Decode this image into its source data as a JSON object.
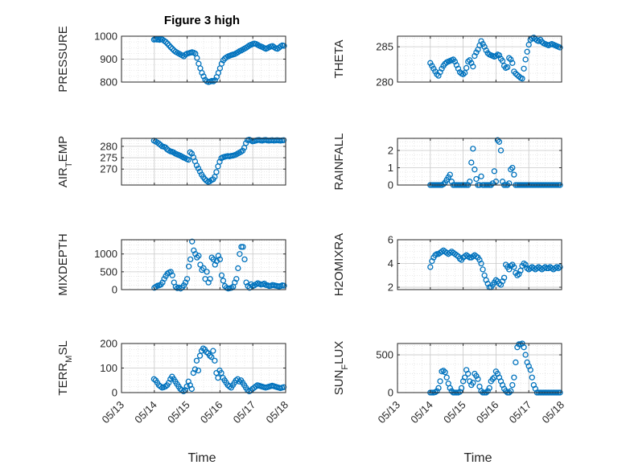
{
  "figure_title": "Figure 3 high",
  "x_label": "Time",
  "marker_color": "#0072bd",
  "x_tick_labels": [
    "05/13",
    "05/14",
    "05/15",
    "05/16",
    "05/17",
    "05/18"
  ],
  "chart_data": [
    {
      "type": "scatter",
      "ylabel": "PRESSURE",
      "ylim": [
        800,
        1000
      ],
      "yticks": [
        800,
        900,
        1000
      ],
      "grid": true,
      "x_range": [
        "05/13",
        "05/18"
      ],
      "x": [
        0.99,
        1.03,
        1.08,
        1.12,
        1.16,
        1.2,
        1.25,
        1.3,
        1.35,
        1.4,
        1.45,
        1.5,
        1.55,
        1.6,
        1.65,
        1.7,
        1.75,
        1.8,
        1.85,
        1.9,
        1.95,
        2.0,
        2.05,
        2.1,
        2.15,
        2.2,
        2.25,
        2.3,
        2.35,
        2.4,
        2.45,
        2.5,
        2.55,
        2.6,
        2.65,
        2.7,
        2.75,
        2.8,
        2.85,
        2.9,
        2.95,
        3.0,
        3.05,
        3.1,
        3.15,
        3.2,
        3.25,
        3.3,
        3.35,
        3.4,
        3.45,
        3.5,
        3.55,
        3.6,
        3.65,
        3.7,
        3.75,
        3.8,
        3.85,
        3.9,
        3.95,
        4.0,
        4.05,
        4.1,
        4.15,
        4.2,
        4.25,
        4.3,
        4.35,
        4.4,
        4.45,
        4.5,
        4.55,
        4.6,
        4.65,
        4.7,
        4.75,
        4.8,
        4.85,
        4.9,
        4.95
      ],
      "y": [
        985,
        987,
        985,
        986,
        984,
        988,
        985,
        980,
        975,
        968,
        960,
        952,
        945,
        938,
        932,
        928,
        924,
        920,
        916,
        912,
        920,
        924,
        926,
        928,
        930,
        928,
        924,
        905,
        880,
        860,
        840,
        825,
        810,
        803,
        800,
        802,
        805,
        803,
        808,
        822,
        840,
        860,
        880,
        895,
        903,
        908,
        912,
        915,
        918,
        920,
        922,
        926,
        930,
        935,
        938,
        942,
        946,
        950,
        955,
        960,
        963,
        966,
        968,
        966,
        962,
        958,
        955,
        952,
        948,
        945,
        948,
        952,
        955,
        957,
        952,
        947,
        945,
        950,
        956,
        960,
        958
      ]
    },
    {
      "type": "scatter",
      "ylabel": "THETA",
      "ylim": [
        280,
        286.5
      ],
      "yticks": [
        280,
        285
      ],
      "grid": true,
      "x_range": [
        "05/13",
        "05/18"
      ],
      "x": [
        1.0,
        1.05,
        1.1,
        1.15,
        1.2,
        1.25,
        1.3,
        1.35,
        1.4,
        1.45,
        1.5,
        1.55,
        1.6,
        1.65,
        1.7,
        1.75,
        1.8,
        1.85,
        1.9,
        1.95,
        2.0,
        2.05,
        2.1,
        2.15,
        2.2,
        2.25,
        2.3,
        2.35,
        2.4,
        2.45,
        2.5,
        2.55,
        2.6,
        2.65,
        2.7,
        2.75,
        2.8,
        2.85,
        2.9,
        2.95,
        3.0,
        3.05,
        3.1,
        3.15,
        3.2,
        3.25,
        3.3,
        3.35,
        3.4,
        3.45,
        3.5,
        3.55,
        3.6,
        3.65,
        3.7,
        3.75,
        3.8,
        3.85,
        3.9,
        3.95,
        4.0,
        4.05,
        4.1,
        4.15,
        4.2,
        4.25,
        4.3,
        4.35,
        4.4,
        4.45,
        4.5,
        4.55,
        4.6,
        4.65,
        4.7,
        4.75,
        4.8,
        4.85,
        4.9,
        4.95
      ],
      "y": [
        282.7,
        282.3,
        281.9,
        281.5,
        281.1,
        280.9,
        281.4,
        281.9,
        282.3,
        282.6,
        282.8,
        282.9,
        283.0,
        283.1,
        283.2,
        282.9,
        282.4,
        281.9,
        281.4,
        281.2,
        281.1,
        281.3,
        282.0,
        282.9,
        283.1,
        282.7,
        282.2,
        283.7,
        284.2,
        284.6,
        285.2,
        285.8,
        285.4,
        285.0,
        284.5,
        284.1,
        283.9,
        283.8,
        283.7,
        283.6,
        283.7,
        283.9,
        283.8,
        283.3,
        283.0,
        282.3,
        282.0,
        282.1,
        283.4,
        283.2,
        282.7,
        281.5,
        281.2,
        281.0,
        280.8,
        280.6,
        280.5,
        281.9,
        283.2,
        284.3,
        285.3,
        286.0,
        286.2,
        286.3,
        286.1,
        285.9,
        285.8,
        286.0,
        285.7,
        285.5,
        285.4,
        285.3,
        285.2,
        285.3,
        285.4,
        285.3,
        285.2,
        285.1,
        285.0,
        284.9
      ]
    },
    {
      "type": "scatter",
      "ylabel_main": "AIR",
      "ylabel_sub": "T",
      "ylabel_tail": "EMP",
      "ylim": [
        263,
        283.5
      ],
      "yticks": [
        270,
        275,
        280
      ],
      "grid": true,
      "x_range": [
        "05/13",
        "05/18"
      ],
      "x": [
        0.99,
        1.04,
        1.09,
        1.14,
        1.19,
        1.24,
        1.29,
        1.34,
        1.39,
        1.44,
        1.49,
        1.54,
        1.59,
        1.64,
        1.69,
        1.74,
        1.79,
        1.84,
        1.89,
        1.94,
        1.99,
        2.04,
        2.09,
        2.14,
        2.19,
        2.24,
        2.29,
        2.34,
        2.39,
        2.44,
        2.49,
        2.54,
        2.59,
        2.64,
        2.69,
        2.74,
        2.79,
        2.84,
        2.89,
        2.94,
        2.99,
        3.04,
        3.09,
        3.14,
        3.19,
        3.24,
        3.29,
        3.34,
        3.39,
        3.44,
        3.49,
        3.54,
        3.59,
        3.64,
        3.69,
        3.74,
        3.79,
        3.84,
        3.89,
        3.94,
        3.99,
        4.04,
        4.09,
        4.14,
        4.19,
        4.24,
        4.29,
        4.34,
        4.39,
        4.44,
        4.49,
        4.54,
        4.59,
        4.64,
        4.69,
        4.74,
        4.79,
        4.84,
        4.89,
        4.94
      ],
      "y": [
        282.5,
        282.1,
        281.7,
        281.2,
        280.6,
        280.0,
        279.8,
        279.5,
        278.7,
        278.2,
        277.8,
        277.6,
        277.3,
        276.8,
        276.5,
        276.2,
        275.9,
        275.5,
        275.1,
        274.8,
        274.4,
        274.1,
        277.4,
        276.8,
        275.2,
        273.4,
        271.6,
        270.3,
        268.9,
        267.6,
        266.5,
        265.6,
        264.9,
        264.4,
        264.6,
        265.2,
        265.5,
        266.6,
        268.7,
        271.2,
        273.2,
        274.8,
        275.2,
        275.4,
        275.6,
        275.7,
        275.6,
        275.8,
        275.9,
        276.1,
        276.4,
        276.8,
        277.2,
        277.6,
        278.1,
        279.4,
        281.4,
        282.7,
        282.9,
        282.6,
        282.2,
        282.3,
        282.5,
        282.7,
        282.8,
        282.6,
        282.5,
        282.7,
        282.8,
        282.6,
        282.5,
        282.6,
        282.7,
        282.5,
        282.6,
        282.7,
        282.6,
        282.5,
        282.6,
        282.7
      ]
    },
    {
      "type": "scatter",
      "ylabel": "RAINFALL",
      "ylim": [
        0,
        2.7
      ],
      "yticks": [
        0,
        1,
        2
      ],
      "grid": true,
      "x_range": [
        "05/13",
        "05/18"
      ],
      "x": [
        1.0,
        1.05,
        1.1,
        1.15,
        1.2,
        1.25,
        1.3,
        1.35,
        1.4,
        1.45,
        1.5,
        1.55,
        1.6,
        1.65,
        1.7,
        1.75,
        1.8,
        1.85,
        1.9,
        1.95,
        2.0,
        2.05,
        2.1,
        2.15,
        2.2,
        2.25,
        2.3,
        2.35,
        2.4,
        2.45,
        2.5,
        2.55,
        2.6,
        2.65,
        2.7,
        2.75,
        2.8,
        2.85,
        2.9,
        2.95,
        3.0,
        3.05,
        3.1,
        3.15,
        3.2,
        3.25,
        3.3,
        3.35,
        3.4,
        3.45,
        3.5,
        3.55,
        3.6,
        3.65,
        3.7,
        3.75,
        3.8,
        3.85,
        3.9,
        3.95,
        4.0,
        4.05,
        4.1,
        4.15,
        4.2,
        4.25,
        4.3,
        4.35,
        4.4,
        4.45,
        4.5,
        4.55,
        4.6,
        4.65,
        4.7,
        4.75,
        4.8,
        4.85,
        4.9,
        4.95
      ],
      "y": [
        0,
        0,
        0,
        0,
        0,
        0,
        0,
        0,
        0.05,
        0.15,
        0.3,
        0.45,
        0.6,
        0.2,
        0,
        0,
        0,
        0,
        0,
        0,
        0,
        0,
        0,
        0,
        0.2,
        1.3,
        2.1,
        0.9,
        0.35,
        0,
        0,
        0.5,
        0,
        0,
        0,
        0,
        0,
        0,
        0.1,
        0.8,
        0.2,
        2.6,
        2.5,
        2.0,
        0.2,
        0,
        0,
        0,
        0.1,
        0.9,
        1.0,
        0.6,
        0,
        0,
        0,
        0,
        0,
        0,
        0,
        0,
        0,
        0,
        0,
        0,
        0,
        0,
        0,
        0,
        0,
        0,
        0,
        0,
        0,
        0,
        0,
        0,
        0,
        0,
        0,
        0
      ]
    },
    {
      "type": "scatter",
      "ylabel": "MIXDEPTH",
      "ylim": [
        0,
        1400
      ],
      "yticks": [
        0,
        500,
        1000
      ],
      "grid": true,
      "x_range": [
        "05/13",
        "05/18"
      ],
      "x": [
        1.0,
        1.05,
        1.1,
        1.15,
        1.2,
        1.25,
        1.3,
        1.35,
        1.4,
        1.45,
        1.5,
        1.55,
        1.6,
        1.65,
        1.7,
        1.75,
        1.8,
        1.85,
        1.9,
        1.95,
        2.0,
        2.05,
        2.1,
        2.15,
        2.2,
        2.25,
        2.3,
        2.35,
        2.4,
        2.45,
        2.5,
        2.55,
        2.6,
        2.65,
        2.7,
        2.75,
        2.8,
        2.85,
        2.9,
        2.95,
        3.0,
        3.05,
        3.1,
        3.15,
        3.2,
        3.25,
        3.3,
        3.35,
        3.4,
        3.45,
        3.5,
        3.55,
        3.6,
        3.65,
        3.7,
        3.75,
        3.8,
        3.85,
        3.9,
        3.95,
        4.0,
        4.05,
        4.1,
        4.15,
        4.2,
        4.25,
        4.3,
        4.35,
        4.4,
        4.45,
        4.5,
        4.55,
        4.6,
        4.65,
        4.7,
        4.75,
        4.8,
        4.85,
        4.9,
        4.95
      ],
      "y": [
        50,
        80,
        110,
        120,
        140,
        200,
        300,
        380,
        450,
        480,
        500,
        400,
        200,
        80,
        40,
        60,
        30,
        60,
        120,
        200,
        300,
        650,
        850,
        1350,
        1100,
        1000,
        900,
        950,
        700,
        550,
        600,
        300,
        500,
        200,
        300,
        900,
        850,
        700,
        800,
        950,
        850,
        400,
        250,
        100,
        50,
        30,
        40,
        50,
        80,
        200,
        300,
        600,
        1000,
        1200,
        1200,
        850,
        200,
        100,
        50,
        150,
        100,
        120,
        150,
        180,
        160,
        140,
        150,
        170,
        130,
        120,
        100,
        110,
        130,
        120,
        110,
        100,
        90,
        100,
        120,
        110
      ]
    },
    {
      "type": "scatter",
      "ylabel": "H2OMIXRA",
      "ylim": [
        1.8,
        6
      ],
      "yticks": [
        2,
        4,
        6
      ],
      "grid": true,
      "x_range": [
        "05/13",
        "05/18"
      ],
      "x": [
        1.0,
        1.05,
        1.1,
        1.15,
        1.2,
        1.25,
        1.3,
        1.35,
        1.4,
        1.45,
        1.5,
        1.55,
        1.6,
        1.65,
        1.7,
        1.75,
        1.8,
        1.85,
        1.9,
        1.95,
        2.0,
        2.05,
        2.1,
        2.15,
        2.2,
        2.25,
        2.3,
        2.35,
        2.4,
        2.45,
        2.5,
        2.55,
        2.6,
        2.65,
        2.7,
        2.75,
        2.8,
        2.85,
        2.9,
        2.95,
        3.0,
        3.05,
        3.1,
        3.15,
        3.2,
        3.25,
        3.3,
        3.35,
        3.4,
        3.45,
        3.5,
        3.55,
        3.6,
        3.65,
        3.7,
        3.75,
        3.8,
        3.85,
        3.9,
        3.95,
        4.0,
        4.05,
        4.1,
        4.15,
        4.2,
        4.25,
        4.3,
        4.35,
        4.4,
        4.45,
        4.5,
        4.55,
        4.6,
        4.65,
        4.7,
        4.75,
        4.8,
        4.85,
        4.9,
        4.95
      ],
      "y": [
        3.7,
        4.2,
        4.5,
        4.7,
        4.8,
        4.8,
        4.9,
        5.0,
        5.1,
        5.0,
        4.9,
        4.8,
        4.9,
        5.0,
        4.9,
        4.8,
        4.7,
        4.6,
        4.4,
        4.3,
        4.5,
        4.6,
        4.7,
        4.6,
        4.5,
        4.5,
        4.6,
        4.7,
        4.6,
        4.5,
        4.3,
        4.0,
        3.5,
        3.0,
        2.6,
        2.3,
        2.0,
        2.0,
        2.2,
        2.4,
        2.6,
        2.5,
        2.3,
        2.2,
        2.5,
        2.8,
        3.9,
        3.7,
        3.5,
        3.8,
        3.9,
        3.7,
        3.2,
        3.0,
        3.1,
        3.4,
        3.8,
        4.0,
        3.9,
        3.6,
        3.5,
        3.6,
        3.7,
        3.6,
        3.5,
        3.6,
        3.7,
        3.6,
        3.5,
        3.6,
        3.7,
        3.6,
        3.6,
        3.7,
        3.6,
        3.5,
        3.6,
        3.7,
        3.6,
        3.7
      ]
    },
    {
      "type": "scatter",
      "ylabel_main": "TERR",
      "ylabel_sub": "M",
      "ylabel_tail": "SL",
      "ylim": [
        0,
        200
      ],
      "yticks": [
        0,
        100,
        200
      ],
      "grid": true,
      "x_range": [
        "05/13",
        "05/18"
      ],
      "x": [
        0.99,
        1.04,
        1.09,
        1.14,
        1.19,
        1.24,
        1.29,
        1.34,
        1.39,
        1.44,
        1.49,
        1.54,
        1.59,
        1.64,
        1.69,
        1.74,
        1.79,
        1.84,
        1.89,
        1.94,
        1.99,
        2.04,
        2.09,
        2.14,
        2.19,
        2.24,
        2.29,
        2.34,
        2.39,
        2.44,
        2.49,
        2.54,
        2.59,
        2.64,
        2.69,
        2.74,
        2.79,
        2.84,
        2.89,
        2.94,
        2.99,
        3.04,
        3.09,
        3.14,
        3.19,
        3.24,
        3.29,
        3.34,
        3.39,
        3.44,
        3.49,
        3.54,
        3.59,
        3.64,
        3.69,
        3.74,
        3.79,
        3.84,
        3.89,
        3.94,
        3.99,
        4.04,
        4.09,
        4.14,
        4.19,
        4.24,
        4.29,
        4.34,
        4.39,
        4.44,
        4.49,
        4.54,
        4.59,
        4.64,
        4.69,
        4.74,
        4.79,
        4.84,
        4.89,
        4.94
      ],
      "y": [
        55,
        50,
        40,
        30,
        25,
        20,
        22,
        25,
        30,
        40,
        55,
        65,
        55,
        45,
        35,
        25,
        15,
        10,
        5,
        10,
        25,
        45,
        30,
        15,
        80,
        95,
        130,
        90,
        150,
        170,
        180,
        175,
        165,
        160,
        150,
        145,
        170,
        130,
        80,
        60,
        90,
        80,
        60,
        50,
        40,
        30,
        25,
        20,
        30,
        40,
        50,
        55,
        45,
        50,
        40,
        30,
        20,
        10,
        5,
        8,
        15,
        20,
        25,
        30,
        28,
        26,
        24,
        22,
        20,
        22,
        24,
        26,
        28,
        26,
        24,
        22,
        20,
        18,
        20,
        22
      ]
    },
    {
      "type": "scatter",
      "ylabel_main": "SUN",
      "ylabel_sub": "F",
      "ylabel_tail": "LUX",
      "ylim": [
        0,
        650
      ],
      "yticks": [
        0,
        500
      ],
      "grid": true,
      "x_range": [
        "05/13",
        "05/18"
      ],
      "x": [
        1.0,
        1.05,
        1.1,
        1.15,
        1.2,
        1.25,
        1.3,
        1.35,
        1.4,
        1.45,
        1.5,
        1.55,
        1.6,
        1.65,
        1.7,
        1.75,
        1.8,
        1.85,
        1.9,
        1.95,
        2.0,
        2.05,
        2.1,
        2.15,
        2.2,
        2.25,
        2.3,
        2.35,
        2.4,
        2.45,
        2.5,
        2.55,
        2.6,
        2.65,
        2.7,
        2.75,
        2.8,
        2.85,
        2.9,
        2.95,
        3.0,
        3.05,
        3.1,
        3.15,
        3.2,
        3.25,
        3.3,
        3.35,
        3.4,
        3.45,
        3.5,
        3.55,
        3.6,
        3.65,
        3.7,
        3.75,
        3.8,
        3.85,
        3.9,
        3.95,
        4.0,
        4.05,
        4.1,
        4.15,
        4.2,
        4.25,
        4.3,
        4.35,
        4.4,
        4.45,
        4.5,
        4.55,
        4.6,
        4.65,
        4.7,
        4.75,
        4.8,
        4.85,
        4.9,
        4.95
      ],
      "y": [
        0,
        0,
        0,
        5,
        20,
        60,
        150,
        280,
        290,
        270,
        200,
        120,
        60,
        20,
        0,
        0,
        0,
        0,
        10,
        60,
        150,
        200,
        300,
        250,
        150,
        100,
        130,
        250,
        220,
        180,
        80,
        20,
        0,
        0,
        0,
        20,
        60,
        150,
        180,
        200,
        280,
        250,
        200,
        150,
        100,
        50,
        20,
        0,
        0,
        20,
        100,
        200,
        400,
        600,
        640,
        640,
        650,
        600,
        500,
        400,
        350,
        300,
        200,
        100,
        50,
        0,
        0,
        0,
        0,
        0,
        0,
        0,
        0,
        0,
        0,
        0,
        0,
        0,
        0,
        0
      ]
    }
  ]
}
